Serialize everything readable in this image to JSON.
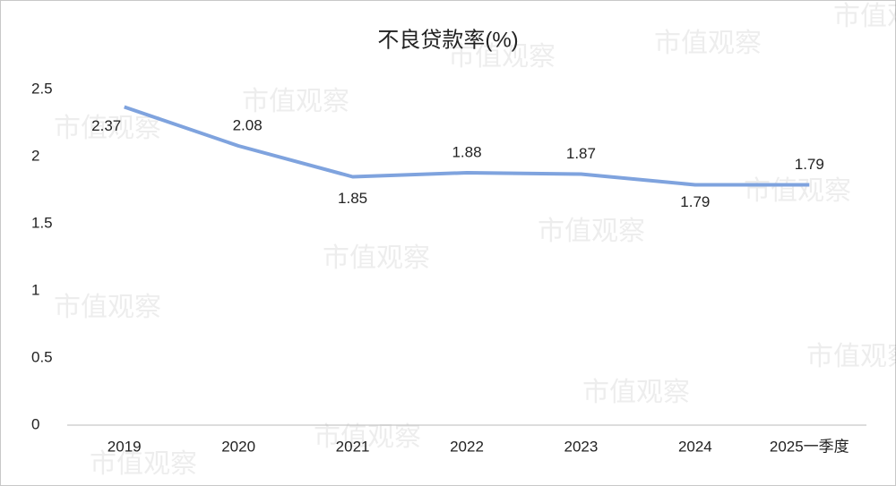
{
  "chart_data": {
    "type": "line",
    "title": "不良贷款率(%)",
    "categories": [
      "2019",
      "2020",
      "2021",
      "2022",
      "2023",
      "2024",
      "2025一季度"
    ],
    "series": [
      {
        "name": "不良贷款率",
        "color": "#7fa3de",
        "values": [
          2.37,
          2.08,
          1.85,
          1.88,
          1.87,
          1.79,
          1.79
        ]
      }
    ],
    "ylim": [
      0,
      2.5
    ],
    "yticks": [
      0,
      0.5,
      1,
      1.5,
      2,
      2.5
    ],
    "grid": false,
    "watermark": "市值观察"
  }
}
